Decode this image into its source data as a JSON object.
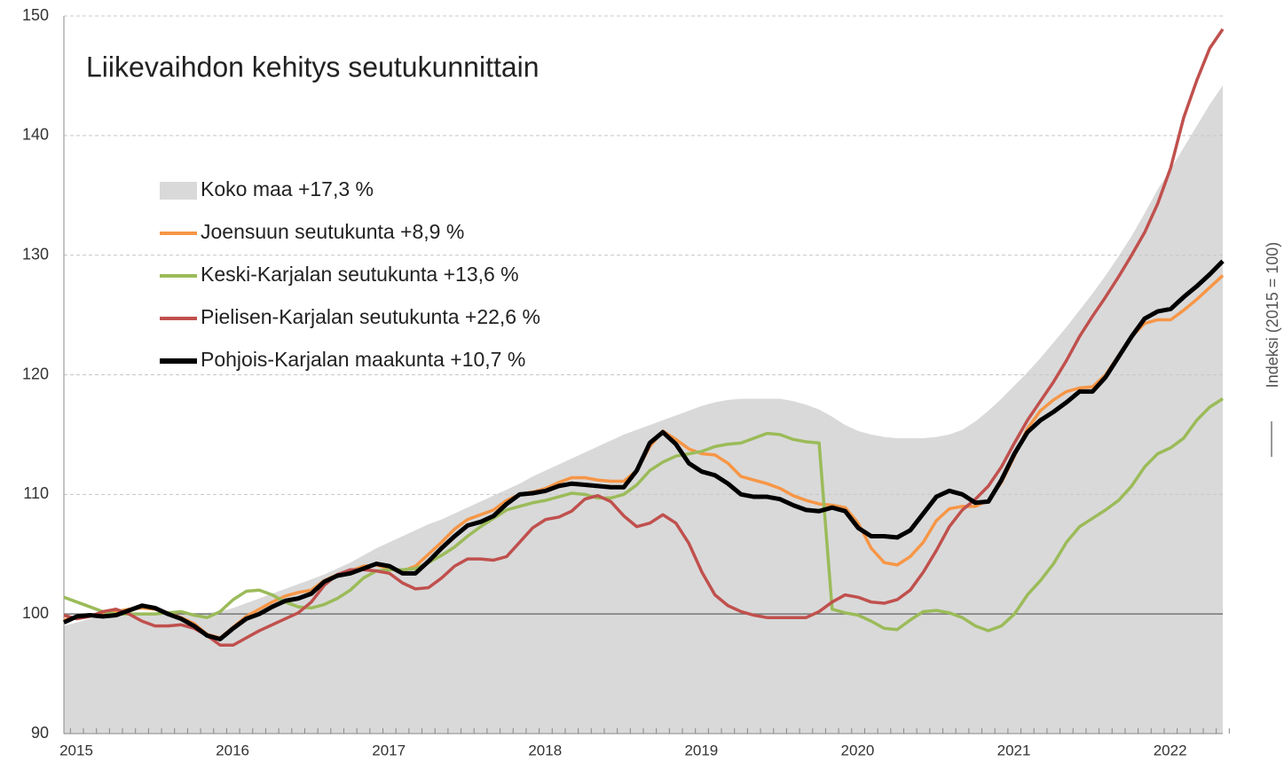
{
  "chart_data": {
    "type": "line",
    "title": "Liikevaihdon kehitys seutukunnittain",
    "y_axis_label": "Indeksi (2015 = 100)",
    "categories": [
      "2015",
      null,
      null,
      null,
      null,
      null,
      null,
      null,
      null,
      null,
      null,
      null,
      "2016",
      null,
      null,
      null,
      null,
      null,
      null,
      null,
      null,
      null,
      null,
      null,
      "2017",
      null,
      null,
      null,
      null,
      null,
      null,
      null,
      null,
      null,
      null,
      null,
      "2018",
      null,
      null,
      null,
      null,
      null,
      null,
      null,
      null,
      null,
      null,
      null,
      "2019",
      null,
      null,
      null,
      null,
      null,
      null,
      null,
      null,
      null,
      null,
      null,
      "2020",
      null,
      null,
      null,
      null,
      null,
      null,
      null,
      null,
      null,
      null,
      null,
      "2021",
      null,
      null,
      null,
      null,
      null,
      null,
      null,
      null,
      null,
      null,
      null,
      "2022",
      null,
      null,
      null,
      null,
      null
    ],
    "ylim": [
      90,
      150
    ],
    "yticks": [
      90,
      100,
      110,
      120,
      130,
      140,
      150
    ],
    "grid": true,
    "reference_line": 100,
    "series": [
      {
        "name": "Koko maa +17,3 %",
        "kind": "area",
        "color": "#d9d9d9",
        "values": [
          99.0,
          99.3,
          99.6,
          99.8,
          99.9,
          100.0,
          100.1,
          100.1,
          100.1,
          100.1,
          100.1,
          100.1,
          100.2,
          100.5,
          100.9,
          101.3,
          101.7,
          102.1,
          102.5,
          102.9,
          103.3,
          103.8,
          104.3,
          104.9,
          105.5,
          106.0,
          106.5,
          107.0,
          107.5,
          107.9,
          108.4,
          108.9,
          109.4,
          109.9,
          110.4,
          110.9,
          111.5,
          112.0,
          112.5,
          113.0,
          113.5,
          114.0,
          114.5,
          115.0,
          115.4,
          115.8,
          116.2,
          116.6,
          117.0,
          117.4,
          117.7,
          117.9,
          118.0,
          118.0,
          118.0,
          118.0,
          117.8,
          117.5,
          117.1,
          116.5,
          115.8,
          115.3,
          115.0,
          114.8,
          114.7,
          114.7,
          114.7,
          114.8,
          115.0,
          115.4,
          116.1,
          117.0,
          118.0,
          119.1,
          120.2,
          121.4,
          122.7,
          124.0,
          125.4,
          126.8,
          128.3,
          129.9,
          131.6,
          133.5,
          135.5,
          137.2,
          139.0,
          140.8,
          142.6,
          144.2
        ]
      },
      {
        "name": "Joensuun seutukunta +8,9 %",
        "kind": "line",
        "color": "#f79646",
        "values": [
          99.5,
          99.7,
          99.9,
          100.0,
          100.2,
          100.4,
          100.5,
          100.4,
          100.1,
          99.7,
          99.2,
          98.3,
          98.0,
          98.9,
          99.8,
          100.4,
          101.0,
          101.5,
          101.8,
          102.0,
          102.8,
          103.3,
          103.6,
          104.0,
          104.1,
          103.8,
          103.6,
          104.0,
          105.0,
          106.0,
          107.1,
          107.9,
          108.3,
          108.7,
          109.5,
          110.0,
          110.2,
          110.5,
          111.0,
          111.4,
          111.4,
          111.2,
          111.1,
          111.1,
          112.0,
          114.0,
          115.3,
          114.6,
          113.8,
          113.4,
          113.3,
          112.6,
          111.5,
          111.2,
          110.9,
          110.5,
          109.9,
          109.5,
          109.2,
          109.1,
          108.9,
          107.6,
          105.5,
          104.3,
          104.1,
          104.8,
          106.0,
          107.8,
          108.8,
          109.0,
          109.0,
          109.5,
          111.0,
          113.2,
          115.5,
          117.0,
          117.9,
          118.6,
          118.9,
          119.0,
          120.0,
          121.6,
          123.2,
          124.3,
          124.6,
          124.6,
          125.4,
          126.3,
          127.3,
          128.3
        ]
      },
      {
        "name": "Keski-Karjalan seutukunta +13,6 %",
        "kind": "line",
        "color": "#9bbb59",
        "values": [
          101.4,
          101.0,
          100.6,
          100.2,
          100.0,
          100.0,
          100.0,
          100.0,
          100.1,
          100.2,
          99.9,
          99.7,
          100.2,
          101.2,
          101.9,
          102.0,
          101.6,
          101.0,
          100.6,
          100.5,
          100.8,
          101.3,
          102.0,
          103.0,
          103.6,
          103.7,
          103.7,
          103.8,
          104.3,
          104.9,
          105.6,
          106.5,
          107.3,
          108.0,
          108.7,
          109.0,
          109.3,
          109.5,
          109.8,
          110.1,
          110.0,
          109.7,
          109.7,
          110.0,
          110.8,
          112.0,
          112.7,
          113.2,
          113.4,
          113.6,
          114.0,
          114.2,
          114.3,
          114.7,
          115.1,
          115.0,
          114.6,
          114.4,
          114.3,
          100.4,
          100.1,
          99.9,
          99.4,
          98.8,
          98.7,
          99.5,
          100.2,
          100.3,
          100.1,
          99.7,
          99.0,
          98.6,
          99.0,
          100.0,
          101.6,
          102.8,
          104.2,
          106.0,
          107.3,
          108.0,
          108.7,
          109.5,
          110.7,
          112.3,
          113.4,
          113.9,
          114.7,
          116.2,
          117.3,
          118.0
        ]
      },
      {
        "name": "Pielisen-Karjalan seutukunta +22,6 %",
        "kind": "line",
        "color": "#c0504d",
        "values": [
          99.9,
          99.6,
          99.8,
          100.2,
          100.4,
          100.0,
          99.4,
          99.0,
          99.0,
          99.1,
          98.8,
          98.2,
          97.4,
          97.4,
          98.0,
          98.6,
          99.1,
          99.6,
          100.1,
          101.0,
          102.4,
          103.3,
          103.7,
          103.7,
          103.6,
          103.4,
          102.6,
          102.1,
          102.2,
          103.0,
          104.0,
          104.6,
          104.6,
          104.5,
          104.8,
          106.0,
          107.2,
          107.9,
          108.1,
          108.6,
          109.6,
          109.9,
          109.4,
          108.2,
          107.3,
          107.6,
          108.3,
          107.6,
          105.9,
          103.5,
          101.6,
          100.7,
          100.2,
          99.9,
          99.7,
          99.7,
          99.7,
          99.7,
          100.2,
          101.0,
          101.6,
          101.4,
          101.0,
          100.9,
          101.2,
          102.0,
          103.5,
          105.3,
          107.3,
          108.7,
          109.6,
          110.7,
          112.3,
          114.3,
          116.2,
          117.8,
          119.4,
          121.2,
          123.2,
          124.9,
          126.5,
          128.2,
          130.0,
          131.9,
          134.3,
          137.3,
          141.5,
          144.6,
          147.3,
          148.9
        ]
      },
      {
        "name": "Pohjois-Karjalan maakunta +10,7 %",
        "kind": "line",
        "color": "#000000",
        "values": [
          99.3,
          99.8,
          99.9,
          99.8,
          99.9,
          100.3,
          100.7,
          100.5,
          100.0,
          99.6,
          99.0,
          98.2,
          97.9,
          98.8,
          99.6,
          100.0,
          100.6,
          101.1,
          101.3,
          101.7,
          102.7,
          103.2,
          103.4,
          103.8,
          104.2,
          104.0,
          103.4,
          103.4,
          104.4,
          105.5,
          106.5,
          107.4,
          107.7,
          108.2,
          109.2,
          110.0,
          110.1,
          110.3,
          110.7,
          110.9,
          110.8,
          110.7,
          110.6,
          110.6,
          112.0,
          114.3,
          115.2,
          114.2,
          112.6,
          111.9,
          111.6,
          110.9,
          110.0,
          109.8,
          109.8,
          109.6,
          109.1,
          108.7,
          108.6,
          108.9,
          108.6,
          107.2,
          106.5,
          106.5,
          106.4,
          107.0,
          108.4,
          109.8,
          110.3,
          110.0,
          109.3,
          109.4,
          111.2,
          113.4,
          115.2,
          116.2,
          116.9,
          117.7,
          118.6,
          118.6,
          119.8,
          121.5,
          123.2,
          124.7,
          125.3,
          125.5,
          126.5,
          127.4,
          128.4,
          129.5
        ]
      }
    ]
  }
}
